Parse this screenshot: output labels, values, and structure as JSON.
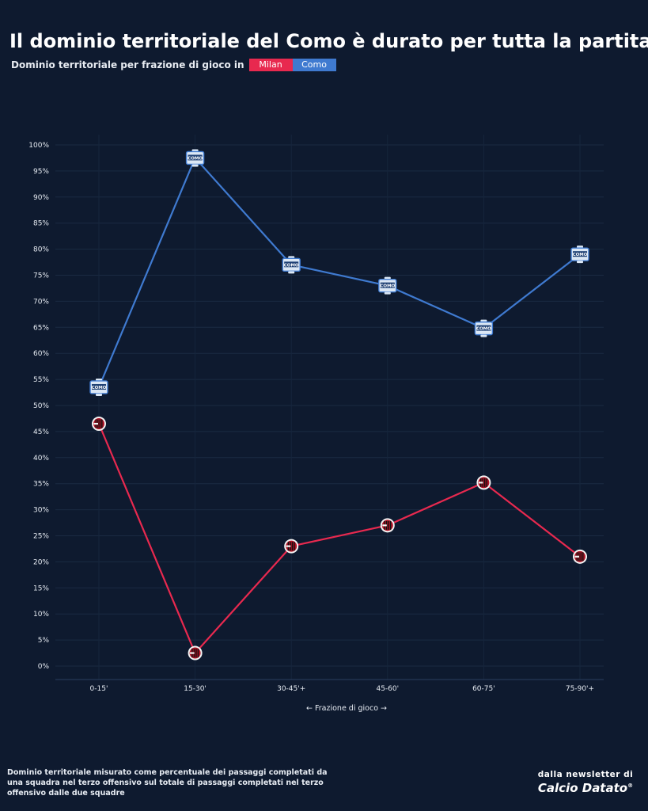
{
  "title": "Il dominio territoriale del Como è durato per tutta la partita",
  "subtitle": "Dominio territoriale per frazione di gioco in",
  "legend": [
    {
      "label": "Milan",
      "color": "#e8294f"
    },
    {
      "label": "Como",
      "color": "#3f7ad0"
    }
  ],
  "footnote": "Dominio territoriale misurato come percentuale dei passaggi completati da una squadra nel terzo offensivo sul totale di passaggi completati nel terzo offensivo dalle due squadre",
  "brand": {
    "top": "dalla newsletter di",
    "name": "Calcio Datato",
    "registered": "®"
  },
  "icons": {
    "milan_marker": "ac-milan-crest-icon",
    "como_marker": "como-crest-icon",
    "como_badge_text": "COMO"
  },
  "chart_data": {
    "type": "line",
    "title": "Il dominio territoriale del Como è durato per tutta la partita",
    "xlabel": "← Frazione di gioco →",
    "ylabel": "",
    "categories": [
      "0-15'",
      "15-30'",
      "30-45'+",
      "45-60'",
      "60-75'",
      "75-90'+"
    ],
    "ylim": [
      0,
      100
    ],
    "yticks": [
      0,
      5,
      10,
      15,
      20,
      25,
      30,
      35,
      40,
      45,
      50,
      55,
      60,
      65,
      70,
      75,
      80,
      85,
      90,
      95,
      100
    ],
    "ytick_suffix": "%",
    "grid": true,
    "legend_position": "subtitle",
    "series": [
      {
        "name": "Milan",
        "color": "#e8294f",
        "values": [
          46.5,
          2.5,
          23,
          27,
          35.2,
          21
        ]
      },
      {
        "name": "Como",
        "color": "#3f7ad0",
        "values": [
          53.5,
          97.5,
          77,
          73,
          64.8,
          79
        ]
      }
    ]
  }
}
